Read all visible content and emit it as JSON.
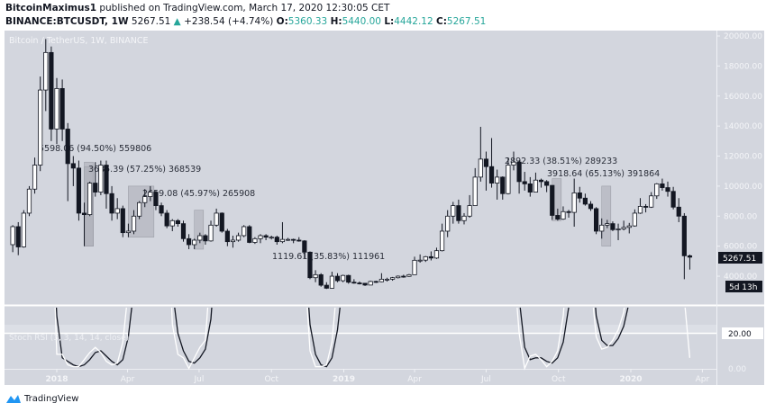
{
  "header": {
    "author": "BitcoinMaximus1",
    "published_text": "published on TradingView.com, March 17, 2020 12:30:05 CET",
    "symbol": "BINANCE:BTCUSDT, 1W",
    "last": "5267.51",
    "change": "+238.54 (+4.74%)",
    "o_label": "O:",
    "o": "5360.33",
    "h_label": "H:",
    "h": "5440.00",
    "l_label": "L:",
    "l": "4442.12",
    "c_label": "C:",
    "c": "5267.51"
  },
  "chart_title": "Bitcoin / TetherUS, 1W, BINANCE",
  "price_tag": "5267.51",
  "countdown_tag": "5d 13h",
  "indicator_label": "Stoch RSI (3, 3, 14, 14, close)",
  "rsi_level_label": "20.00",
  "rsi_zero_label": "0.00",
  "brand": "TradingView",
  "colors": {
    "background": "#d3d6de",
    "up": "#ffffff",
    "down": "#131722",
    "teal": "#26a69a",
    "stoch_k": "#ffffff",
    "stoch_d": "#131722"
  },
  "chart_data": {
    "type": "candlestick",
    "interval": "1W",
    "ylim": [
      3000,
      20500
    ],
    "y_ticks": [
      "20000.00",
      "18000.00",
      "16000.00",
      "14000.00",
      "12000.00",
      "10000.00",
      "8000.00",
      "6000.00",
      "4000.00"
    ],
    "x_ticks": [
      {
        "label": "2018",
        "date": "2018-01-01"
      },
      {
        "label": "Apr",
        "date": "2018-04-01"
      },
      {
        "label": "Jul",
        "date": "2018-07-01"
      },
      {
        "label": "Oct",
        "date": "2018-10-01"
      },
      {
        "label": "2019",
        "date": "2019-01-01"
      },
      {
        "label": "Apr",
        "date": "2019-04-01"
      },
      {
        "label": "Jul",
        "date": "2019-07-01"
      },
      {
        "label": "Oct",
        "date": "2019-10-01"
      },
      {
        "label": "2020",
        "date": "2020-01-01"
      },
      {
        "label": "Apr",
        "date": "2020-04-01"
      }
    ],
    "columns": [
      "date",
      "open",
      "high",
      "low",
      "close"
    ],
    "candles": [
      [
        "2017-11-06",
        6100,
        7400,
        5600,
        7300
      ],
      [
        "2017-11-13",
        7300,
        7600,
        5400,
        5950
      ],
      [
        "2017-11-20",
        5950,
        8400,
        5900,
        8200
      ],
      [
        "2017-11-27",
        8200,
        10000,
        8000,
        9800
      ],
      [
        "2017-12-04",
        9800,
        11900,
        9500,
        11400
      ],
      [
        "2017-12-11",
        11400,
        17300,
        11000,
        16400
      ],
      [
        "2017-12-18",
        16400,
        19800,
        15000,
        18900
      ],
      [
        "2017-12-25",
        18900,
        19300,
        13000,
        13800
      ],
      [
        "2018-01-01",
        13800,
        17200,
        12800,
        16500
      ],
      [
        "2018-01-08",
        16500,
        17100,
        13000,
        13800
      ],
      [
        "2018-01-15",
        13800,
        14200,
        9000,
        11500
      ],
      [
        "2018-01-22",
        11500,
        12000,
        10000,
        11200
      ],
      [
        "2018-01-29",
        11200,
        11700,
        7700,
        8200
      ],
      [
        "2018-02-05",
        8200,
        8900,
        6000,
        8100
      ],
      [
        "2018-02-12",
        8100,
        10300,
        8000,
        10200
      ],
      [
        "2018-02-19",
        10200,
        11600,
        9300,
        9600
      ],
      [
        "2018-02-26",
        9600,
        11700,
        9400,
        11400
      ],
      [
        "2018-03-05",
        11400,
        11700,
        8500,
        9500
      ],
      [
        "2018-03-12",
        9500,
        10000,
        7700,
        8200
      ],
      [
        "2018-03-19",
        8200,
        9200,
        7800,
        8500
      ],
      [
        "2018-03-26",
        8500,
        8700,
        6600,
        6900
      ],
      [
        "2018-04-02",
        6900,
        7500,
        6600,
        7000
      ],
      [
        "2018-04-09",
        7000,
        8400,
        6800,
        8000
      ],
      [
        "2018-04-16",
        8000,
        9000,
        7800,
        8900
      ],
      [
        "2018-04-23",
        8900,
        9800,
        8600,
        9300
      ],
      [
        "2018-04-30",
        9300,
        10000,
        9000,
        9600
      ],
      [
        "2018-05-07",
        9600,
        9700,
        8400,
        8700
      ],
      [
        "2018-05-14",
        8700,
        8900,
        8000,
        8200
      ],
      [
        "2018-05-21",
        8200,
        8400,
        7200,
        7350
      ],
      [
        "2018-05-28",
        7350,
        7800,
        7000,
        7700
      ],
      [
        "2018-06-04",
        7700,
        7800,
        7300,
        7500
      ],
      [
        "2018-06-11",
        7500,
        7700,
        6300,
        6500
      ],
      [
        "2018-06-18",
        6500,
        6800,
        5800,
        6100
      ],
      [
        "2018-06-25",
        6100,
        6500,
        5800,
        6400
      ],
      [
        "2018-07-02",
        6400,
        6900,
        6200,
        6700
      ],
      [
        "2018-07-09",
        6700,
        6800,
        6100,
        6350
      ],
      [
        "2018-07-16",
        6350,
        7700,
        6300,
        7400
      ],
      [
        "2018-07-23",
        7400,
        8500,
        7300,
        8200
      ],
      [
        "2018-07-30",
        8200,
        8250,
        6900,
        7000
      ],
      [
        "2018-08-06",
        7000,
        7150,
        6000,
        6300
      ],
      [
        "2018-08-13",
        6300,
        6700,
        5900,
        6400
      ],
      [
        "2018-08-20",
        6400,
        6900,
        6300,
        6700
      ],
      [
        "2018-08-27",
        6700,
        7400,
        6600,
        7300
      ],
      [
        "2018-09-03",
        7300,
        7400,
        6200,
        6250
      ],
      [
        "2018-09-10",
        6250,
        6600,
        6150,
        6500
      ],
      [
        "2018-09-17",
        6500,
        6800,
        6200,
        6700
      ],
      [
        "2018-09-24",
        6700,
        6800,
        6400,
        6600
      ],
      [
        "2018-10-01",
        6600,
        6700,
        6450,
        6600
      ],
      [
        "2018-10-08",
        6600,
        6700,
        6100,
        6300
      ],
      [
        "2018-10-15",
        6300,
        7600,
        6200,
        6450
      ],
      [
        "2018-10-22",
        6450,
        6550,
        6350,
        6450
      ],
      [
        "2018-10-29",
        6450,
        6500,
        6200,
        6400
      ],
      [
        "2018-11-05",
        6400,
        6600,
        6300,
        6350
      ],
      [
        "2018-11-12",
        6350,
        6400,
        5200,
        5600
      ],
      [
        "2018-11-19",
        5600,
        5650,
        3800,
        3900
      ],
      [
        "2018-11-26",
        3900,
        4400,
        3600,
        4100
      ],
      [
        "2018-12-03",
        4100,
        4200,
        3300,
        3400
      ],
      [
        "2018-12-10",
        3400,
        3600,
        3150,
        3200
      ],
      [
        "2018-12-17",
        3200,
        4300,
        3200,
        4000
      ],
      [
        "2018-12-24",
        4000,
        4200,
        3600,
        3700
      ],
      [
        "2018-12-31",
        3700,
        4100,
        3600,
        4050
      ],
      [
        "2019-01-07",
        4050,
        4100,
        3500,
        3600
      ],
      [
        "2019-01-14",
        3600,
        3800,
        3500,
        3550
      ],
      [
        "2019-01-21",
        3550,
        3650,
        3450,
        3530
      ],
      [
        "2019-01-28",
        3530,
        3550,
        3350,
        3410
      ],
      [
        "2019-02-04",
        3410,
        3700,
        3400,
        3650
      ],
      [
        "2019-02-11",
        3650,
        3700,
        3550,
        3630
      ],
      [
        "2019-02-18",
        3630,
        4200,
        3600,
        3800
      ],
      [
        "2019-02-25",
        3800,
        3900,
        3650,
        3800
      ],
      [
        "2019-03-04",
        3800,
        3950,
        3700,
        3900
      ],
      [
        "2019-03-11",
        3900,
        4050,
        3850,
        4000
      ],
      [
        "2019-03-18",
        4000,
        4100,
        3900,
        3990
      ],
      [
        "2019-03-25",
        3990,
        4150,
        3950,
        4100
      ],
      [
        "2019-04-01",
        4100,
        5300,
        4100,
        5060
      ],
      [
        "2019-04-08",
        5060,
        5450,
        4900,
        5070
      ],
      [
        "2019-04-15",
        5070,
        5350,
        4950,
        5300
      ],
      [
        "2019-04-22",
        5300,
        5650,
        5050,
        5210
      ],
      [
        "2019-04-29",
        5210,
        5900,
        5150,
        5700
      ],
      [
        "2019-05-06",
        5700,
        7500,
        5650,
        7000
      ],
      [
        "2019-05-13",
        7000,
        8400,
        6600,
        8000
      ],
      [
        "2019-05-20",
        8000,
        8950,
        7500,
        8700
      ],
      [
        "2019-05-27",
        8700,
        9100,
        7500,
        7700
      ],
      [
        "2019-06-03",
        7700,
        8200,
        7450,
        8000
      ],
      [
        "2019-06-10",
        8000,
        9400,
        7900,
        8700
      ],
      [
        "2019-06-17",
        8700,
        11200,
        8700,
        10600
      ],
      [
        "2019-06-24",
        10600,
        13950,
        10300,
        11800
      ],
      [
        "2019-07-01",
        11800,
        12300,
        9700,
        11300
      ],
      [
        "2019-07-08",
        11300,
        13200,
        9900,
        10200
      ],
      [
        "2019-07-15",
        10200,
        11100,
        9100,
        10600
      ],
      [
        "2019-07-22",
        10600,
        10650,
        9100,
        9500
      ],
      [
        "2019-07-29",
        9500,
        11900,
        9450,
        11400
      ],
      [
        "2019-08-05",
        11400,
        12300,
        11050,
        11600
      ],
      [
        "2019-08-12",
        11600,
        11700,
        9500,
        10300
      ],
      [
        "2019-08-19",
        10300,
        10950,
        9700,
        10150
      ],
      [
        "2019-08-26",
        10150,
        10600,
        9300,
        9600
      ],
      [
        "2019-09-02",
        9600,
        10900,
        9600,
        10400
      ],
      [
        "2019-09-09",
        10400,
        10500,
        9900,
        10300
      ],
      [
        "2019-09-16",
        10300,
        10400,
        9600,
        10050
      ],
      [
        "2019-09-23",
        10050,
        10050,
        7750,
        8050
      ],
      [
        "2019-09-30",
        8050,
        8500,
        7700,
        7800
      ],
      [
        "2019-10-07",
        7800,
        8650,
        7750,
        8300
      ],
      [
        "2019-10-14",
        8300,
        8420,
        7900,
        8250
      ],
      [
        "2019-10-21",
        8250,
        10500,
        7300,
        9550
      ],
      [
        "2019-10-28",
        9550,
        9950,
        8900,
        9200
      ],
      [
        "2019-11-04",
        9200,
        9500,
        8700,
        8800
      ],
      [
        "2019-11-11",
        8800,
        9000,
        8350,
        8500
      ],
      [
        "2019-11-18",
        8500,
        8600,
        6800,
        7000
      ],
      [
        "2019-11-25",
        7000,
        7850,
        6500,
        7400
      ],
      [
        "2019-12-02",
        7400,
        7750,
        7200,
        7500
      ],
      [
        "2019-12-09",
        7500,
        7650,
        7000,
        7100
      ],
      [
        "2019-12-16",
        7100,
        7500,
        6400,
        7150
      ],
      [
        "2019-12-23",
        7150,
        7700,
        7050,
        7250
      ],
      [
        "2019-12-30",
        7250,
        7550,
        6850,
        7350
      ],
      [
        "2020-01-06",
        7350,
        8450,
        7300,
        8200
      ],
      [
        "2020-01-13",
        8200,
        9200,
        8150,
        8650
      ],
      [
        "2020-01-20",
        8650,
        8800,
        8250,
        8600
      ],
      [
        "2020-01-27",
        8600,
        9600,
        8550,
        9350
      ],
      [
        "2020-02-03",
        9350,
        10200,
        9150,
        10150
      ],
      [
        "2020-02-10",
        10150,
        10500,
        9700,
        9900
      ],
      [
        "2020-02-17",
        9900,
        10300,
        9300,
        9650
      ],
      [
        "2020-02-24",
        9650,
        9950,
        8450,
        8600
      ],
      [
        "2020-03-02",
        8600,
        9200,
        7600,
        8000
      ],
      [
        "2020-03-09",
        8000,
        8200,
        3800,
        5360.33
      ],
      [
        "2020-03-16",
        5360.33,
        5440.0,
        4442.12,
        5267.51
      ]
    ],
    "measurements": [
      {
        "text": "5598.06 (94.50%) 559806",
        "from_date": "2018-02-05",
        "to_date": "2018-02-12",
        "low": 6000,
        "high": 11600
      },
      {
        "text": "3685.39 (57.25%) 368539",
        "from_date": "2018-02-05",
        "to_date": "2018-02-12",
        "low": 6000,
        "high": 11300
      },
      {
        "text": "2659.08 (45.97%) 265908",
        "from_date": "2018-04-02",
        "to_date": "2018-04-30",
        "low": 6600,
        "high": 10000
      },
      {
        "text": "1119.61 (35.83%) 111961",
        "from_date": "2018-06-25",
        "to_date": "2018-07-02",
        "low": 5800,
        "high": 8400
      },
      {
        "text": "2892.33 (38.51%) 289233",
        "from_date": "2019-09-23",
        "to_date": "2019-09-30",
        "low": 7700,
        "high": 10500
      },
      {
        "text": "3918.64 (65.13%) 391864",
        "from_date": "2019-11-25",
        "to_date": "2019-12-02",
        "low": 6000,
        "high": 10000
      }
    ],
    "stoch_rsi": {
      "ylim": [
        0,
        34
      ],
      "level": 20,
      "k": [
        100,
        100,
        100,
        100,
        100,
        100,
        100,
        100,
        8,
        8,
        2,
        1,
        1,
        5,
        9,
        12,
        9,
        4,
        2,
        3,
        15,
        45,
        80,
        100,
        100,
        100,
        100,
        100,
        100,
        25,
        8,
        6,
        0,
        6,
        12,
        16,
        60,
        100,
        100,
        100,
        100,
        100,
        100,
        100,
        100,
        100,
        100,
        100,
        100,
        100,
        100,
        100,
        100,
        60,
        10,
        1,
        1,
        2,
        15,
        50,
        90,
        100,
        100,
        100,
        100,
        100,
        100,
        100,
        100,
        100,
        100,
        100,
        100,
        100,
        100,
        100,
        100,
        100,
        100,
        100,
        100,
        100,
        100,
        100,
        100,
        100,
        100,
        100,
        100,
        100,
        100,
        60,
        20,
        0,
        7,
        8,
        5,
        1,
        4,
        10,
        30,
        70,
        100,
        100,
        100,
        50,
        18,
        11,
        12,
        16,
        22,
        32,
        60,
        100,
        100,
        100,
        100,
        100,
        100,
        100,
        100,
        100,
        40,
        6
      ],
      "d": [
        100,
        100,
        100,
        100,
        100,
        100,
        100,
        100,
        30,
        6,
        4,
        2,
        1,
        2,
        5,
        9,
        10,
        7,
        4,
        2,
        5,
        18,
        45,
        80,
        100,
        100,
        100,
        100,
        100,
        45,
        20,
        10,
        4,
        3,
        6,
        11,
        28,
        70,
        100,
        100,
        100,
        100,
        100,
        100,
        100,
        100,
        100,
        100,
        100,
        100,
        100,
        100,
        100,
        70,
        25,
        8,
        2,
        1,
        6,
        22,
        50,
        90,
        100,
        100,
        100,
        100,
        100,
        100,
        100,
        100,
        100,
        100,
        100,
        100,
        100,
        100,
        100,
        100,
        100,
        100,
        100,
        100,
        100,
        100,
        100,
        100,
        100,
        100,
        100,
        100,
        100,
        70,
        40,
        12,
        5,
        6,
        6,
        4,
        3,
        6,
        15,
        35,
        70,
        100,
        100,
        70,
        30,
        16,
        13,
        13,
        17,
        24,
        38,
        70,
        100,
        100,
        100,
        100,
        100,
        100,
        100,
        100,
        90,
        60
      ]
    }
  }
}
